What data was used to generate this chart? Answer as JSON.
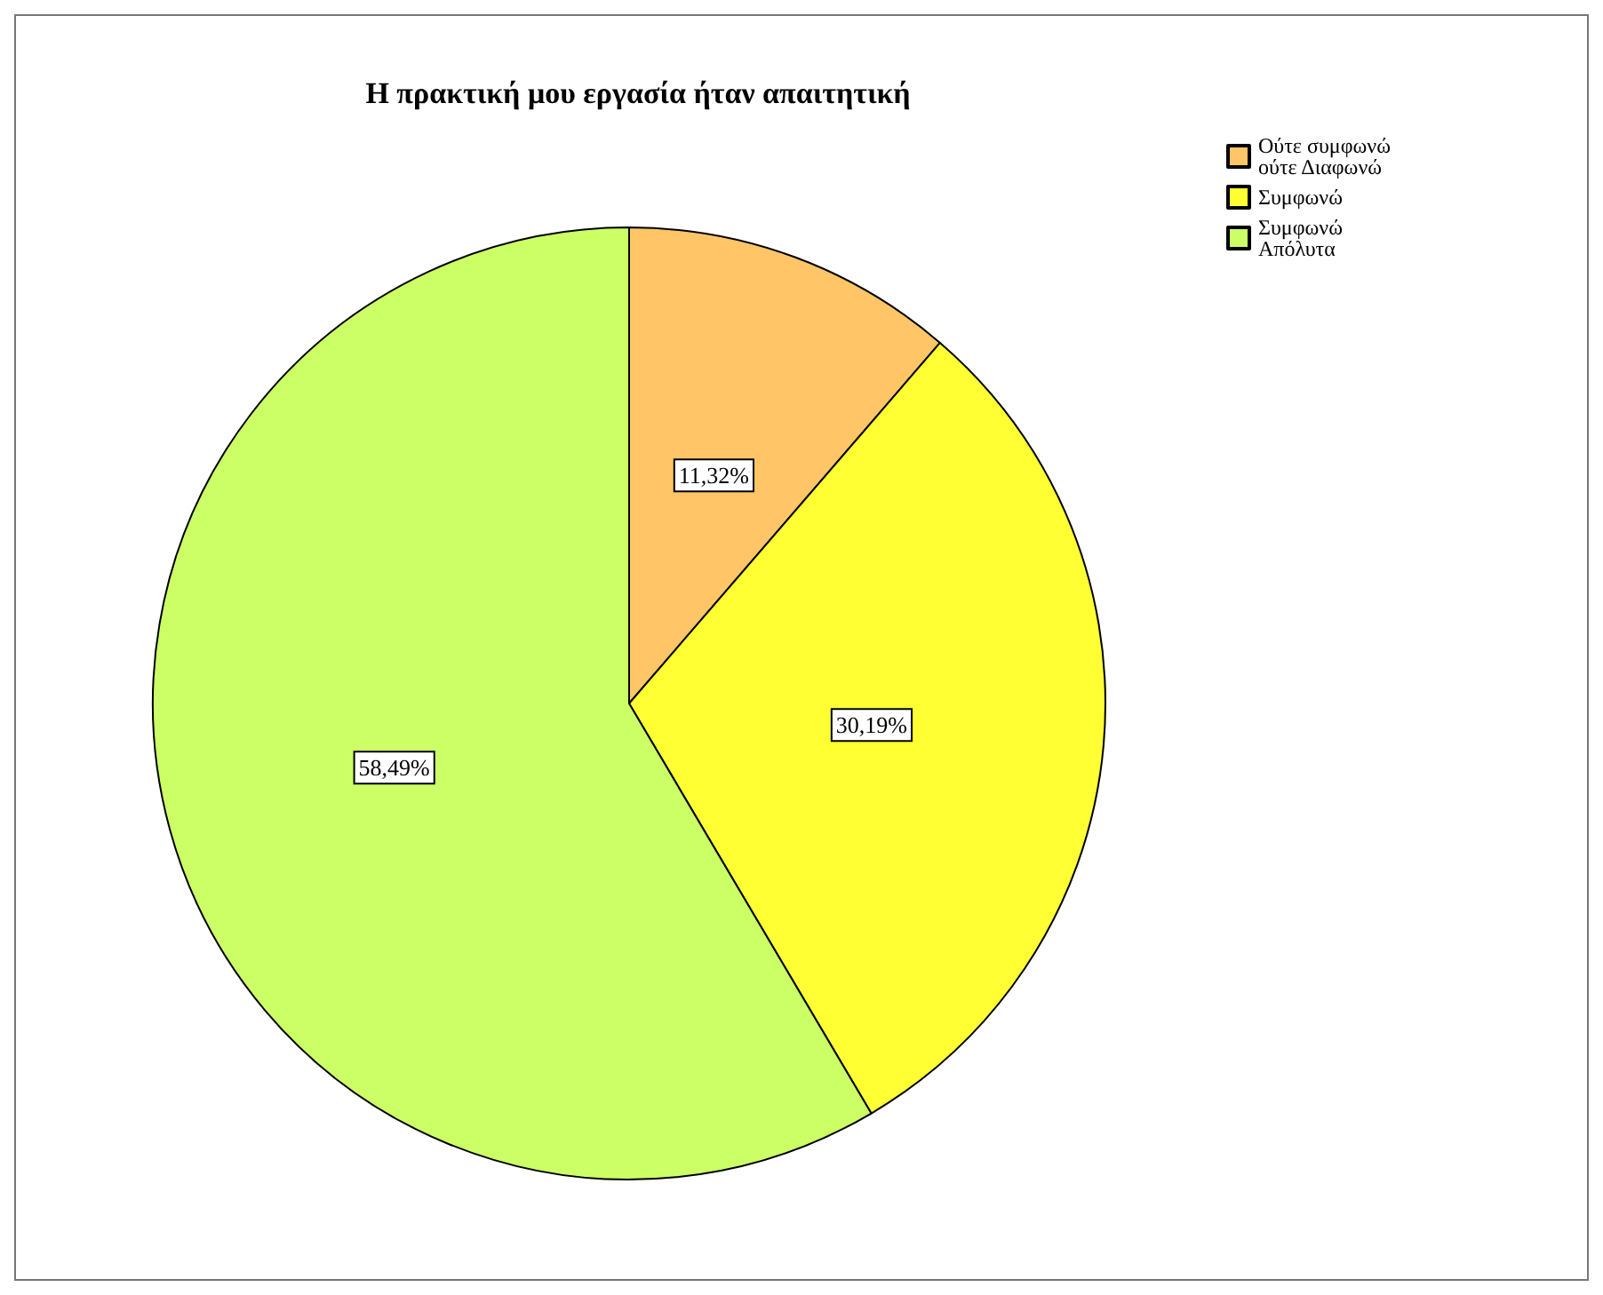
{
  "chart_data": {
    "type": "pie",
    "title": "Η πρακτική μου εργασία ήταν απαιτητική",
    "categories": [
      "Ούτε συμφωνώ ούτε Διαφωνώ",
      "Συμφωνώ",
      "Συμφωνώ Απόλυτα"
    ],
    "values": [
      11.32,
      30.19,
      58.49
    ],
    "colors": [
      "#ffc566",
      "#ffff33",
      "#ccff66"
    ],
    "value_labels": [
      "11,32%",
      "30,19%",
      "58,49%"
    ],
    "legend": "top right"
  }
}
